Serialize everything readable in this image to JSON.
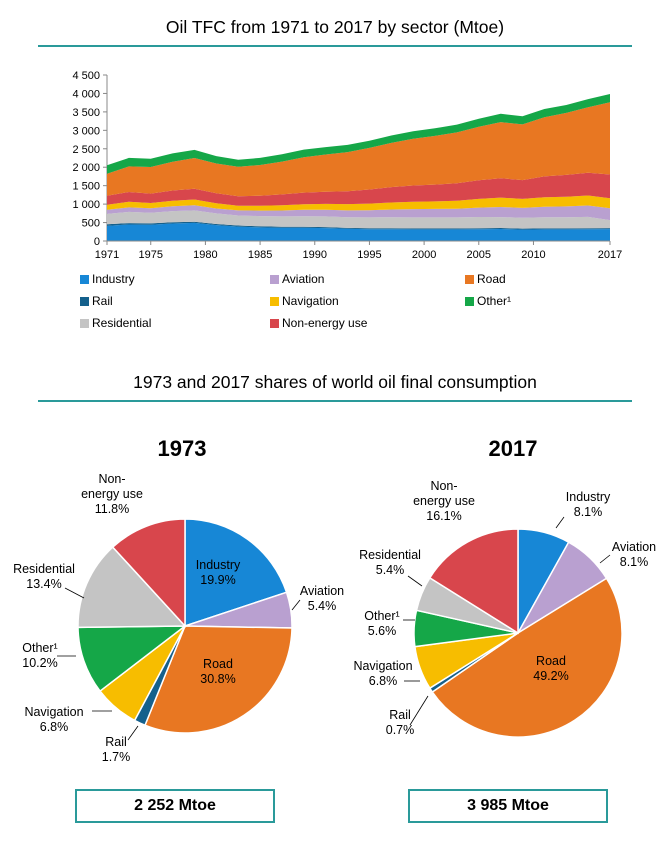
{
  "colors": {
    "Industry": "#1787d6",
    "Rail": "#14608c",
    "Residential": "#c4c4c4",
    "Aviation": "#b9a0d0",
    "Navigation": "#f7bd00",
    "Non-energy use": "#d8464c",
    "Road": "#e87722",
    "Other": "#15a748",
    "accent": "#2a9a9a"
  },
  "titles": {
    "area": "Oil TFC from 1971 to 2017 by sector (Mtoe)",
    "shares": "1973 and 2017 shares of world oil final consumption"
  },
  "legend": {
    "items": [
      {
        "key": "Industry",
        "label": "Industry"
      },
      {
        "key": "Aviation",
        "label": "Aviation"
      },
      {
        "key": "Road",
        "label": "Road"
      },
      {
        "key": "Rail",
        "label": "Rail"
      },
      {
        "key": "Navigation",
        "label": "Navigation"
      },
      {
        "key": "Other",
        "label": "Other¹"
      },
      {
        "key": "Residential",
        "label": "Residential"
      },
      {
        "key": "Non-energy use",
        "label": "Non-energy use"
      }
    ]
  },
  "chart_data": [
    {
      "type": "area",
      "stacked": true,
      "title": "Oil TFC from 1971 to 2017 by sector (Mtoe)",
      "ylim": [
        0,
        4500
      ],
      "yticks": [
        0,
        500,
        1000,
        1500,
        2000,
        2500,
        3000,
        3500,
        4000,
        4500
      ],
      "ytick_labels": [
        "0",
        "500",
        "1 000",
        "1 500",
        "2 000",
        "2 500",
        "3 000",
        "3 500",
        "4 000",
        "4 500"
      ],
      "xlim": [
        1971,
        2017
      ],
      "xtick_labels": [
        "1971",
        "1975",
        "1980",
        "1985",
        "1990",
        "1995",
        "2000",
        "2005",
        "2010",
        "2017"
      ],
      "xticks": [
        1971,
        1975,
        1980,
        1985,
        1990,
        1995,
        2000,
        2005,
        2010,
        2017
      ],
      "legend": "bottom",
      "x": [
        1971,
        1973,
        1975,
        1977,
        1979,
        1981,
        1983,
        1985,
        1987,
        1989,
        1991,
        1993,
        1995,
        1997,
        1999,
        2001,
        2003,
        2005,
        2007,
        2009,
        2011,
        2013,
        2015,
        2017
      ],
      "series": [
        {
          "name": "Industry",
          "values": [
            410,
            448,
            440,
            475,
            490,
            430,
            390,
            370,
            360,
            360,
            350,
            330,
            320,
            320,
            315,
            315,
            315,
            320,
            325,
            310,
            315,
            315,
            320,
            323
          ]
        },
        {
          "name": "Rail",
          "values": [
            45,
            38,
            36,
            35,
            34,
            32,
            30,
            29,
            28,
            27,
            26,
            25,
            25,
            25,
            24,
            24,
            25,
            26,
            27,
            26,
            27,
            27,
            28,
            28
          ]
        },
        {
          "name": "Residential",
          "values": [
            280,
            302,
            290,
            300,
            305,
            285,
            270,
            275,
            280,
            285,
            290,
            290,
            295,
            300,
            300,
            300,
            300,
            305,
            295,
            295,
            300,
            300,
            305,
            215
          ]
        },
        {
          "name": "Aviation",
          "values": [
            110,
            122,
            120,
            130,
            140,
            135,
            140,
            150,
            160,
            175,
            180,
            185,
            195,
            210,
            225,
            230,
            235,
            255,
            275,
            265,
            285,
            295,
            310,
            323
          ]
        },
        {
          "name": "Navigation",
          "values": [
            140,
            153,
            145,
            150,
            155,
            140,
            125,
            130,
            140,
            150,
            160,
            170,
            180,
            190,
            200,
            205,
            215,
            235,
            255,
            245,
            260,
            265,
            270,
            271
          ]
        },
        {
          "name": "Non-energy use",
          "values": [
            240,
            266,
            255,
            280,
            295,
            270,
            260,
            275,
            295,
            315,
            330,
            350,
            380,
            415,
            440,
            455,
            475,
            505,
            525,
            510,
            565,
            590,
            615,
            642
          ]
        },
        {
          "name": "Road",
          "values": [
            600,
            694,
            720,
            780,
            830,
            810,
            800,
            830,
            890,
            960,
            1010,
            1060,
            1130,
            1200,
            1270,
            1320,
            1380,
            1450,
            1520,
            1510,
            1600,
            1680,
            1780,
            1961
          ]
        },
        {
          "name": "Other",
          "values": [
            230,
            229,
            225,
            225,
            220,
            200,
            190,
            195,
            200,
            205,
            200,
            195,
            195,
            200,
            200,
            205,
            210,
            220,
            230,
            220,
            225,
            215,
            220,
            223
          ]
        }
      ]
    },
    {
      "type": "pie",
      "title": "1973",
      "total": "2 252 Mtoe",
      "slices": [
        {
          "key": "Industry",
          "label": "Industry",
          "pct": "19.9%",
          "value": 19.9
        },
        {
          "key": "Aviation",
          "label": "Aviation",
          "pct": "5.4%",
          "value": 5.4
        },
        {
          "key": "Road",
          "label": "Road",
          "pct": "30.8%",
          "value": 30.8
        },
        {
          "key": "Rail",
          "label": "Rail",
          "pct": "1.7%",
          "value": 1.7
        },
        {
          "key": "Navigation",
          "label": "Navigation",
          "pct": "6.8%",
          "value": 6.8
        },
        {
          "key": "Other",
          "label": "Other¹",
          "pct": "10.2%",
          "value": 10.2
        },
        {
          "key": "Residential",
          "label": "Residential",
          "pct": "13.4%",
          "value": 13.4
        },
        {
          "key": "Non-energy use",
          "label": "Non-\nenergy use",
          "pct": "11.8%",
          "value": 11.8
        }
      ]
    },
    {
      "type": "pie",
      "title": "2017",
      "total": "3 985 Mtoe",
      "slices": [
        {
          "key": "Industry",
          "label": "Industry",
          "pct": "8.1%",
          "value": 8.1
        },
        {
          "key": "Aviation",
          "label": "Aviation",
          "pct": "8.1%",
          "value": 8.1
        },
        {
          "key": "Road",
          "label": "Road",
          "pct": "49.2%",
          "value": 49.2
        },
        {
          "key": "Rail",
          "label": "Rail",
          "pct": "0.7%",
          "value": 0.7
        },
        {
          "key": "Navigation",
          "label": "Navigation",
          "pct": "6.8%",
          "value": 6.8
        },
        {
          "key": "Other",
          "label": "Other¹",
          "pct": "5.6%",
          "value": 5.6
        },
        {
          "key": "Residential",
          "label": "Residential",
          "pct": "5.4%",
          "value": 5.4
        },
        {
          "key": "Non-energy use",
          "label": "Non-\nenergy use",
          "pct": "16.1%",
          "value": 16.1
        }
      ]
    }
  ]
}
